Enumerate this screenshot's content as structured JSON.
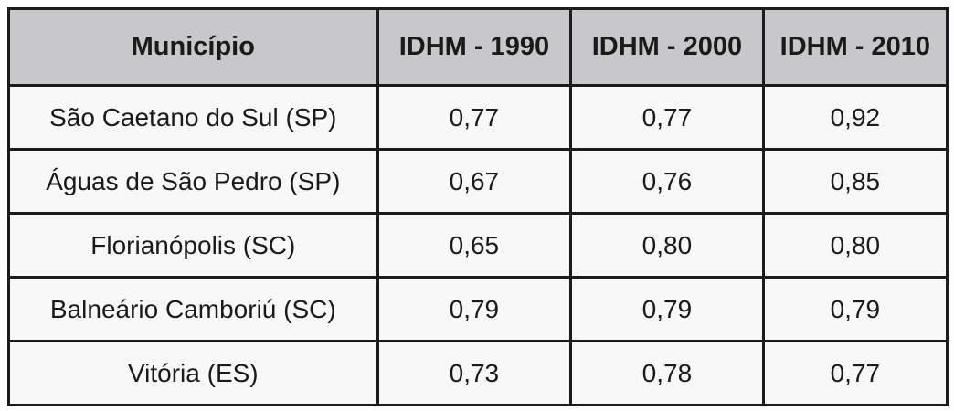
{
  "chart_data": {
    "type": "table",
    "title": "",
    "columns": [
      "Município",
      "IDHM - 1990",
      "IDHM - 2000",
      "IDHM - 2010"
    ],
    "rows": [
      [
        "São Caetano do Sul (SP)",
        "0,77",
        "0,77",
        "0,92"
      ],
      [
        "Águas de São Pedro (SP)",
        "0,67",
        "0,76",
        "0,85"
      ],
      [
        "Florianópolis (SC)",
        "0,65",
        "0,80",
        "0,80"
      ],
      [
        "Balneário Camboriú (SC)",
        "0,79",
        "0,79",
        "0,79"
      ],
      [
        "Vitória (ES)",
        "0,73",
        "0,78",
        "0,77"
      ]
    ],
    "categories": [
      "São Caetano do Sul (SP)",
      "Águas de São Pedro (SP)",
      "Florianópolis (SC)",
      "Balneário Camboriú (SC)",
      "Vitória (ES)"
    ],
    "series": [
      {
        "name": "IDHM - 1990",
        "values": [
          0.77,
          0.67,
          0.65,
          0.79,
          0.73
        ]
      },
      {
        "name": "IDHM - 2000",
        "values": [
          0.77,
          0.76,
          0.8,
          0.79,
          0.78
        ]
      },
      {
        "name": "IDHM - 2010",
        "values": [
          0.92,
          0.85,
          0.8,
          0.79,
          0.77
        ]
      }
    ]
  },
  "colors": {
    "header_bg": "#c8c8cb",
    "cell_bg": "#f8f8f8",
    "border": "#1c1c1c",
    "text": "#1a1a1a"
  }
}
